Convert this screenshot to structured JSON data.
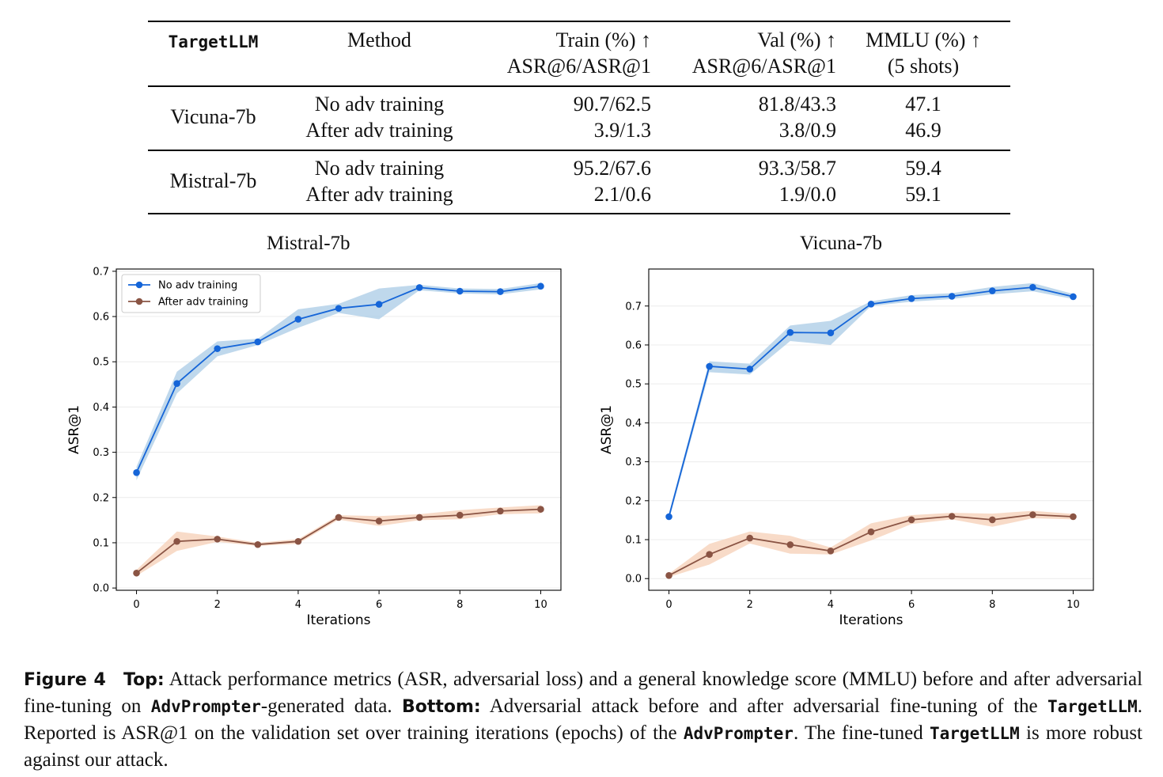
{
  "table": {
    "headers": {
      "target": "TargetLLM",
      "method": "Method",
      "train_1": "Train (%) ↑",
      "train_2": "ASR@6/ASR@1",
      "val_1": "Val (%) ↑",
      "val_2": "ASR@6/ASR@1",
      "mmlu_1": "MMLU (%) ↑",
      "mmlu_2": "(5 shots)"
    },
    "groups": [
      {
        "model": "Vicuna-7b",
        "rows": [
          {
            "method": "No adv training",
            "train": "90.7/62.5",
            "val": "81.8/43.3",
            "mmlu": "47.1"
          },
          {
            "method": "After adv training",
            "train": "3.9/1.3",
            "val": "3.8/0.9",
            "mmlu": "46.9"
          }
        ]
      },
      {
        "model": "Mistral-7b",
        "rows": [
          {
            "method": "No adv training",
            "train": "95.2/67.6",
            "val": "93.3/58.7",
            "mmlu": "59.4"
          },
          {
            "method": "After adv training",
            "train": "2.1/0.6",
            "val": "1.9/0.0",
            "mmlu": "59.1"
          }
        ]
      }
    ]
  },
  "chart_data": [
    {
      "type": "line",
      "title": "Mistral-7b",
      "xlabel": "Iterations",
      "ylabel": "ASR@1",
      "x": [
        0,
        1,
        2,
        3,
        4,
        5,
        6,
        7,
        8,
        9,
        10
      ],
      "xticks": [
        0,
        2,
        4,
        6,
        8,
        10
      ],
      "yticks": [
        0.0,
        0.1,
        0.2,
        0.3,
        0.4,
        0.5,
        0.6,
        0.7
      ],
      "xlim": [
        -0.5,
        10.5
      ],
      "ylim": [
        -0.005,
        0.705
      ],
      "grid": "horizontal",
      "legend": "top-left",
      "series": [
        {
          "name": "No adv training",
          "color": "#1565d8",
          "band": "#a9cbe6",
          "values": [
            0.255,
            0.452,
            0.529,
            0.544,
            0.594,
            0.618,
            0.627,
            0.664,
            0.656,
            0.655,
            0.667
          ],
          "lower": [
            0.238,
            0.43,
            0.512,
            0.537,
            0.575,
            0.608,
            0.594,
            0.658,
            0.651,
            0.649,
            0.66
          ],
          "upper": [
            0.268,
            0.478,
            0.545,
            0.551,
            0.616,
            0.628,
            0.662,
            0.67,
            0.662,
            0.661,
            0.674
          ]
        },
        {
          "name": "After adv training",
          "color": "#8a5444",
          "band": "#f6cfb5",
          "values": [
            0.033,
            0.103,
            0.108,
            0.096,
            0.103,
            0.156,
            0.148,
            0.156,
            0.161,
            0.17,
            0.174
          ],
          "lower": [
            0.027,
            0.082,
            0.102,
            0.093,
            0.098,
            0.151,
            0.137,
            0.15,
            0.152,
            0.163,
            0.165
          ],
          "upper": [
            0.04,
            0.125,
            0.114,
            0.1,
            0.108,
            0.161,
            0.159,
            0.163,
            0.172,
            0.178,
            0.183
          ]
        }
      ]
    },
    {
      "type": "line",
      "title": "Vicuna-7b",
      "xlabel": "Iterations",
      "ylabel": "ASR@1",
      "x": [
        0,
        1,
        2,
        3,
        4,
        5,
        6,
        7,
        8,
        9,
        10
      ],
      "xticks": [
        0,
        2,
        4,
        6,
        8,
        10
      ],
      "yticks": [
        0.0,
        0.1,
        0.2,
        0.3,
        0.4,
        0.5,
        0.6,
        0.7
      ],
      "xlim": [
        -0.5,
        10.5
      ],
      "ylim": [
        -0.03,
        0.795
      ],
      "grid": "horizontal",
      "legend": "none",
      "series": [
        {
          "name": "No adv training",
          "color": "#1565d8",
          "band": "#a9cbe6",
          "values": [
            0.159,
            0.545,
            0.538,
            0.632,
            0.631,
            0.705,
            0.719,
            0.725,
            0.739,
            0.748,
            0.724
          ],
          "lower": [
            0.15,
            0.53,
            0.524,
            0.61,
            0.6,
            0.7,
            0.711,
            0.718,
            0.73,
            0.738,
            0.718
          ],
          "upper": [
            0.168,
            0.558,
            0.552,
            0.65,
            0.662,
            0.712,
            0.728,
            0.733,
            0.749,
            0.759,
            0.731
          ]
        },
        {
          "name": "After adv training",
          "color": "#8a5444",
          "band": "#f6cfb5",
          "values": [
            0.008,
            0.062,
            0.104,
            0.087,
            0.071,
            0.12,
            0.151,
            0.16,
            0.151,
            0.164,
            0.159
          ],
          "lower": [
            0.004,
            0.036,
            0.09,
            0.064,
            0.062,
            0.098,
            0.14,
            0.152,
            0.133,
            0.155,
            0.152
          ],
          "upper": [
            0.012,
            0.089,
            0.121,
            0.11,
            0.08,
            0.142,
            0.163,
            0.169,
            0.167,
            0.174,
            0.166
          ]
        }
      ]
    }
  ],
  "caption": {
    "label": "Figure 4",
    "top_label": "Top:",
    "t1": " Attack performance metrics (ASR, adversarial loss) and a general knowledge score (MMLU) before and after adversarial fine-tuning on ",
    "advprompter_1": "AdvPrompter",
    "t2": "-generated data. ",
    "bottom_label": "Bottom:",
    "t3": " Adversarial attack before and after adversarial fine-tuning of the ",
    "targetllm_1": "TargetLLM",
    "t4": ". Reported is ASR@1 on the validation set over training iterations (epochs) of the ",
    "advprompter_2": "AdvPrompter",
    "t5": ". The fine-tuned ",
    "targetllm_2": "TargetLLM",
    "t6": " is more robust against our attack."
  }
}
